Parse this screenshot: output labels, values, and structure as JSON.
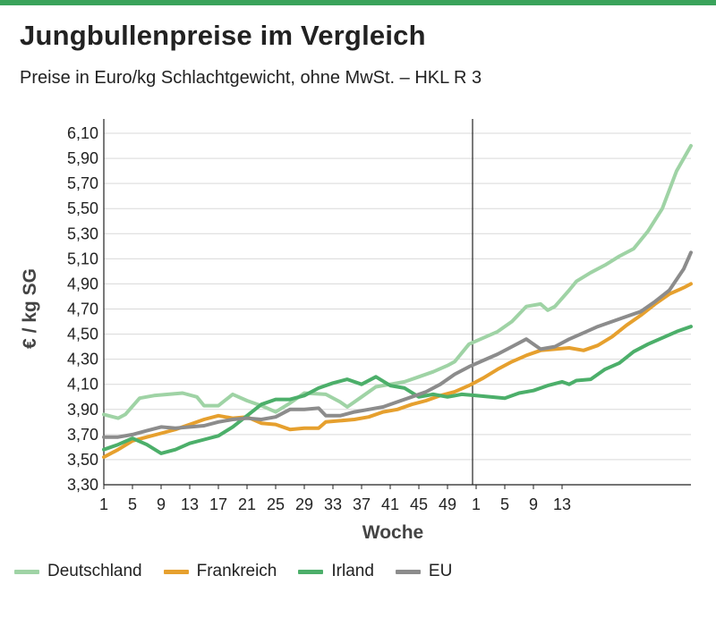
{
  "title": "Jungbullenpreise im Vergleich",
  "subtitle": "Preise in Euro/kg Schlachtgewicht, ohne MwSt. – HKL R 3",
  "colors": {
    "accent_bar": "#3aa35b",
    "Deutschland": "#9fd3a5",
    "Frankreich": "#e6a02e",
    "Irland": "#4caf6a",
    "EU": "#8c8c8c"
  },
  "chart_data": {
    "type": "line",
    "xlabel": "Woche",
    "ylabel": "€ / kg SG",
    "ylim": [
      3.3,
      6.1
    ],
    "yticks": [
      "3,30",
      "3,50",
      "3,70",
      "3,90",
      "4,10",
      "4,30",
      "4,50",
      "4,70",
      "4,90",
      "5,10",
      "5,30",
      "5,50",
      "5,70",
      "5,90",
      "6,10"
    ],
    "xticks": [
      {
        "label": "1",
        "i": 0
      },
      {
        "label": "5",
        "i": 4
      },
      {
        "label": "9",
        "i": 8
      },
      {
        "label": "13",
        "i": 12
      },
      {
        "label": "17",
        "i": 16
      },
      {
        "label": "21",
        "i": 20
      },
      {
        "label": "25",
        "i": 24
      },
      {
        "label": "29",
        "i": 28
      },
      {
        "label": "33",
        "i": 32
      },
      {
        "label": "37",
        "i": 36
      },
      {
        "label": "41",
        "i": 40
      },
      {
        "label": "45",
        "i": 44
      },
      {
        "label": "49",
        "i": 48
      },
      {
        "label": "1",
        "i": 52
      },
      {
        "label": "5",
        "i": 56
      },
      {
        "label": "9",
        "i": 60
      },
      {
        "label": "13",
        "i": 64
      }
    ],
    "year_divider_index": 51.5,
    "grid": true,
    "legend_position": "bottom",
    "series": [
      {
        "name": "Deutschland",
        "values": [
          [
            0,
            3.86
          ],
          [
            2,
            3.83
          ],
          [
            3,
            3.86
          ],
          [
            5,
            3.99
          ],
          [
            7,
            4.01
          ],
          [
            9,
            4.02
          ],
          [
            11,
            4.03
          ],
          [
            13,
            4.0
          ],
          [
            14,
            3.93
          ],
          [
            16,
            3.93
          ],
          [
            18,
            4.02
          ],
          [
            20,
            3.97
          ],
          [
            22,
            3.93
          ],
          [
            24,
            3.88
          ],
          [
            26,
            3.95
          ],
          [
            28,
            4.03
          ],
          [
            31,
            4.02
          ],
          [
            33,
            3.96
          ],
          [
            34,
            3.92
          ],
          [
            36,
            4.0
          ],
          [
            38,
            4.08
          ],
          [
            40,
            4.1
          ],
          [
            42,
            4.12
          ],
          [
            44,
            4.16
          ],
          [
            46,
            4.2
          ],
          [
            48,
            4.25
          ],
          [
            49,
            4.28
          ],
          [
            51,
            4.42
          ],
          [
            53,
            4.47
          ],
          [
            55,
            4.52
          ],
          [
            57,
            4.6
          ],
          [
            59,
            4.72
          ],
          [
            61,
            4.74
          ],
          [
            62,
            4.69
          ],
          [
            63,
            4.72
          ],
          [
            65,
            4.85
          ],
          [
            66,
            4.92
          ],
          [
            68,
            4.99
          ],
          [
            70,
            5.05
          ],
          [
            72,
            5.12
          ],
          [
            74,
            5.18
          ],
          [
            76,
            5.32
          ],
          [
            78,
            5.5
          ],
          [
            80,
            5.8
          ],
          [
            82,
            6.0
          ]
        ]
      },
      {
        "name": "Frankreich",
        "values": [
          [
            0,
            3.52
          ],
          [
            2,
            3.58
          ],
          [
            4,
            3.65
          ],
          [
            6,
            3.68
          ],
          [
            8,
            3.71
          ],
          [
            10,
            3.74
          ],
          [
            12,
            3.78
          ],
          [
            14,
            3.82
          ],
          [
            16,
            3.85
          ],
          [
            18,
            3.83
          ],
          [
            20,
            3.84
          ],
          [
            22,
            3.79
          ],
          [
            24,
            3.78
          ],
          [
            26,
            3.74
          ],
          [
            28,
            3.75
          ],
          [
            30,
            3.75
          ],
          [
            31,
            3.8
          ],
          [
            33,
            3.81
          ],
          [
            35,
            3.82
          ],
          [
            37,
            3.84
          ],
          [
            39,
            3.88
          ],
          [
            41,
            3.9
          ],
          [
            43,
            3.94
          ],
          [
            45,
            3.97
          ],
          [
            47,
            4.01
          ],
          [
            49,
            4.04
          ],
          [
            51,
            4.09
          ],
          [
            53,
            4.15
          ],
          [
            55,
            4.22
          ],
          [
            57,
            4.28
          ],
          [
            59,
            4.33
          ],
          [
            61,
            4.37
          ],
          [
            63,
            4.38
          ],
          [
            65,
            4.39
          ],
          [
            67,
            4.37
          ],
          [
            69,
            4.41
          ],
          [
            71,
            4.48
          ],
          [
            73,
            4.57
          ],
          [
            75,
            4.65
          ],
          [
            77,
            4.74
          ],
          [
            79,
            4.82
          ],
          [
            81,
            4.87
          ],
          [
            82,
            4.9
          ]
        ]
      },
      {
        "name": "Irland",
        "values": [
          [
            0,
            3.58
          ],
          [
            2,
            3.62
          ],
          [
            4,
            3.67
          ],
          [
            6,
            3.62
          ],
          [
            8,
            3.55
          ],
          [
            10,
            3.58
          ],
          [
            12,
            3.63
          ],
          [
            14,
            3.66
          ],
          [
            16,
            3.69
          ],
          [
            18,
            3.76
          ],
          [
            20,
            3.85
          ],
          [
            22,
            3.94
          ],
          [
            24,
            3.98
          ],
          [
            26,
            3.98
          ],
          [
            28,
            4.01
          ],
          [
            30,
            4.07
          ],
          [
            32,
            4.11
          ],
          [
            34,
            4.14
          ],
          [
            36,
            4.1
          ],
          [
            38,
            4.16
          ],
          [
            40,
            4.09
          ],
          [
            42,
            4.07
          ],
          [
            44,
            4.0
          ],
          [
            46,
            4.02
          ],
          [
            48,
            4.0
          ],
          [
            50,
            4.02
          ],
          [
            52,
            4.01
          ],
          [
            54,
            4.0
          ],
          [
            56,
            3.99
          ],
          [
            58,
            4.03
          ],
          [
            60,
            4.05
          ],
          [
            62,
            4.09
          ],
          [
            64,
            4.12
          ],
          [
            65,
            4.1
          ],
          [
            66,
            4.13
          ],
          [
            68,
            4.14
          ],
          [
            70,
            4.22
          ],
          [
            72,
            4.27
          ],
          [
            74,
            4.36
          ],
          [
            76,
            4.42
          ],
          [
            78,
            4.47
          ],
          [
            80,
            4.52
          ],
          [
            82,
            4.56
          ]
        ]
      },
      {
        "name": "EU",
        "values": [
          [
            0,
            3.68
          ],
          [
            2,
            3.68
          ],
          [
            4,
            3.7
          ],
          [
            6,
            3.73
          ],
          [
            8,
            3.76
          ],
          [
            10,
            3.75
          ],
          [
            12,
            3.76
          ],
          [
            14,
            3.77
          ],
          [
            16,
            3.8
          ],
          [
            18,
            3.82
          ],
          [
            20,
            3.83
          ],
          [
            22,
            3.82
          ],
          [
            24,
            3.84
          ],
          [
            26,
            3.9
          ],
          [
            28,
            3.9
          ],
          [
            30,
            3.91
          ],
          [
            31,
            3.85
          ],
          [
            33,
            3.85
          ],
          [
            35,
            3.88
          ],
          [
            37,
            3.9
          ],
          [
            39,
            3.92
          ],
          [
            41,
            3.96
          ],
          [
            43,
            4.0
          ],
          [
            45,
            4.04
          ],
          [
            47,
            4.1
          ],
          [
            49,
            4.18
          ],
          [
            51,
            4.24
          ],
          [
            53,
            4.29
          ],
          [
            55,
            4.34
          ],
          [
            57,
            4.4
          ],
          [
            59,
            4.46
          ],
          [
            61,
            4.38
          ],
          [
            63,
            4.4
          ],
          [
            65,
            4.46
          ],
          [
            67,
            4.51
          ],
          [
            69,
            4.56
          ],
          [
            71,
            4.6
          ],
          [
            73,
            4.64
          ],
          [
            75,
            4.68
          ],
          [
            77,
            4.76
          ],
          [
            79,
            4.85
          ],
          [
            81,
            5.02
          ],
          [
            82,
            5.15
          ]
        ]
      }
    ]
  }
}
